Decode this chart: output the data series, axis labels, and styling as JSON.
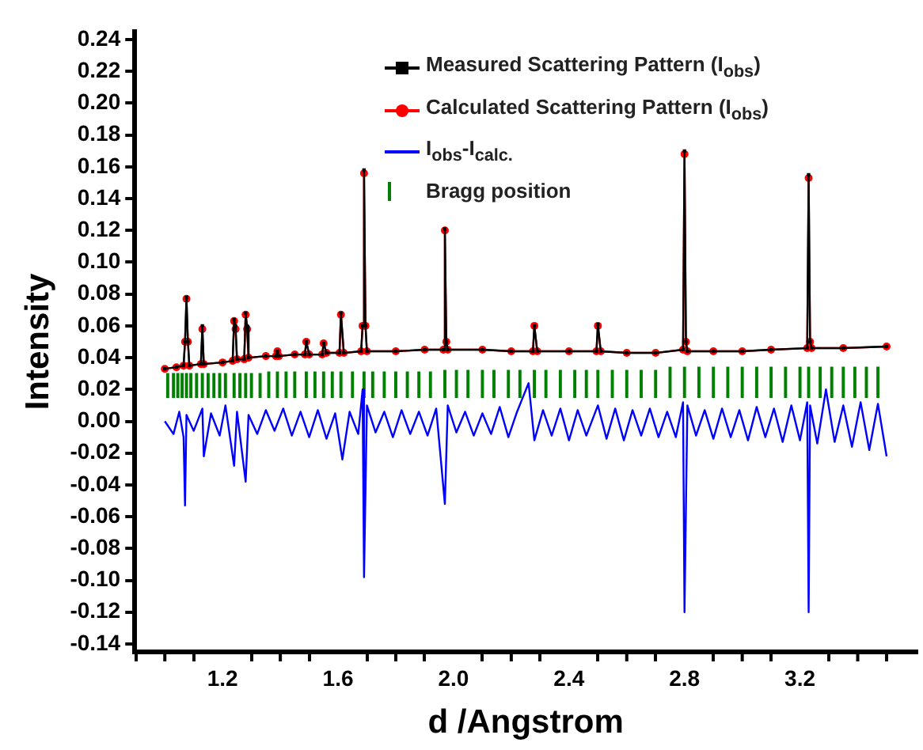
{
  "chart_data": {
    "type": "line",
    "xlabel": "d /Angstrom",
    "ylabel": "Intensity",
    "xlim": [
      1.0,
      3.5
    ],
    "xticks": [
      {
        "value": 1.0,
        "label": null
      },
      {
        "value": 1.2,
        "label": "1.2"
      },
      {
        "value": 1.4,
        "label": null
      },
      {
        "value": 1.6,
        "label": "1.6"
      },
      {
        "value": 1.8,
        "label": null
      },
      {
        "value": 2.0,
        "label": "2.0"
      },
      {
        "value": 2.2,
        "label": null
      },
      {
        "value": 2.4,
        "label": "2.4"
      },
      {
        "value": 2.6,
        "label": null
      },
      {
        "value": 2.8,
        "label": "2.8"
      },
      {
        "value": 3.0,
        "label": null
      },
      {
        "value": 3.2,
        "label": "3.2"
      },
      {
        "value": 3.4,
        "label": null
      }
    ],
    "ylim": [
      -0.145,
      0.245
    ],
    "yticks": [
      {
        "value": -0.14,
        "label": "-0.14"
      },
      {
        "value": -0.12,
        "label": "-0.12"
      },
      {
        "value": -0.1,
        "label": "-0.10"
      },
      {
        "value": -0.08,
        "label": "-0.08"
      },
      {
        "value": -0.06,
        "label": "-0.06"
      },
      {
        "value": -0.04,
        "label": "-0.04"
      },
      {
        "value": -0.02,
        "label": "-0.02"
      },
      {
        "value": 0,
        "label": "0.00"
      },
      {
        "value": 0.02,
        "label": "0.02"
      },
      {
        "value": 0.04,
        "label": "0.04"
      },
      {
        "value": 0.06,
        "label": "0.06"
      },
      {
        "value": 0.08,
        "label": "0.08"
      },
      {
        "value": 0.1,
        "label": "0.10"
      },
      {
        "value": 0.12,
        "label": "0.12"
      },
      {
        "value": 0.14,
        "label": "0.14"
      },
      {
        "value": 0.16,
        "label": "0.16"
      },
      {
        "value": 0.18,
        "label": "0.18"
      },
      {
        "value": 0.2,
        "label": "0.20"
      },
      {
        "value": 0.22,
        "label": "0.22"
      },
      {
        "value": 0.24,
        "label": "0.24"
      }
    ],
    "grid": false,
    "legend": "top",
    "series": [
      {
        "type": "bar",
        "name": "Bragg position",
        "color": "#008000",
        "x": [
          1.01,
          1.03,
          1.045,
          1.06,
          1.075,
          1.09,
          1.11,
          1.13,
          1.15,
          1.17,
          1.19,
          1.21,
          1.24,
          1.26,
          1.28,
          1.3,
          1.33,
          1.36,
          1.39,
          1.42,
          1.45,
          1.49,
          1.52,
          1.55,
          1.58,
          1.61,
          1.65,
          1.69,
          1.72,
          1.76,
          1.8,
          1.84,
          1.88,
          1.92,
          1.97,
          2.01,
          2.05,
          2.1,
          2.14,
          2.19,
          2.23,
          2.28,
          2.32,
          2.37,
          2.42,
          2.46,
          2.5,
          2.55,
          2.6,
          2.65,
          2.7,
          2.75,
          2.8,
          2.85,
          2.9,
          2.95,
          3.0,
          3.05,
          3.1,
          3.15,
          3.2,
          3.23,
          3.27,
          3.31,
          3.35,
          3.39,
          3.43,
          3.47
        ],
        "values": [
          0.015,
          0.015,
          0.015,
          0.015,
          0.015,
          0.015,
          0.015,
          0.015,
          0.015,
          0.015,
          0.015,
          0.015,
          0.015,
          0.015,
          0.015,
          0.015,
          0.015,
          0.016,
          0.016,
          0.016,
          0.016,
          0.016,
          0.016,
          0.016,
          0.016,
          0.016,
          0.016,
          0.016,
          0.016,
          0.016,
          0.016,
          0.016,
          0.016,
          0.016,
          0.017,
          0.017,
          0.017,
          0.017,
          0.017,
          0.017,
          0.017,
          0.017,
          0.017,
          0.017,
          0.017,
          0.017,
          0.017,
          0.017,
          0.017,
          0.017,
          0.017,
          0.019,
          0.019,
          0.019,
          0.019,
          0.019,
          0.019,
          0.019,
          0.019,
          0.019,
          0.019,
          0.019,
          0.019,
          0.019,
          0.019,
          0.019,
          0.019,
          0.019
        ],
        "base": [
          0.015,
          0.015,
          0.015,
          0.015,
          0.015,
          0.015,
          0.015,
          0.015,
          0.015,
          0.015,
          0.015,
          0.015,
          0.015,
          0.015,
          0.015,
          0.015,
          0.015,
          0.015,
          0.015,
          0.015,
          0.015,
          0.015,
          0.015,
          0.015,
          0.015,
          0.015,
          0.015,
          0.015,
          0.015,
          0.015,
          0.015,
          0.015,
          0.015,
          0.015,
          0.015,
          0.015,
          0.015,
          0.015,
          0.015,
          0.015,
          0.015,
          0.015,
          0.015,
          0.015,
          0.015,
          0.015,
          0.015,
          0.015,
          0.015,
          0.015,
          0.015,
          0.015,
          0.015,
          0.015,
          0.015,
          0.015,
          0.015,
          0.015,
          0.015,
          0.015,
          0.015,
          0.015,
          0.015,
          0.015,
          0.015,
          0.015,
          0.015,
          0.015
        ]
      },
      {
        "type": "line",
        "name": "I$_{obs}$-I$_{calc.}$",
        "color": "#0000ff",
        "marker": "none",
        "x": [
          1.0,
          1.03,
          1.05,
          1.065,
          1.07,
          1.075,
          1.1,
          1.13,
          1.135,
          1.16,
          1.19,
          1.21,
          1.24,
          1.25,
          1.28,
          1.29,
          1.32,
          1.35,
          1.38,
          1.41,
          1.44,
          1.47,
          1.5,
          1.53,
          1.56,
          1.59,
          1.615,
          1.64,
          1.67,
          1.685,
          1.69,
          1.7,
          1.73,
          1.76,
          1.79,
          1.82,
          1.85,
          1.88,
          1.91,
          1.94,
          1.97,
          1.98,
          2.01,
          2.04,
          2.07,
          2.1,
          2.13,
          2.16,
          2.19,
          2.22,
          2.26,
          2.28,
          2.31,
          2.34,
          2.37,
          2.4,
          2.43,
          2.46,
          2.5,
          2.53,
          2.56,
          2.59,
          2.62,
          2.65,
          2.68,
          2.71,
          2.74,
          2.77,
          2.795,
          2.8,
          2.81,
          2.84,
          2.87,
          2.9,
          2.93,
          2.96,
          2.99,
          3.02,
          3.05,
          3.08,
          3.11,
          3.14,
          3.17,
          3.2,
          3.225,
          3.23,
          3.235,
          3.26,
          3.29,
          3.32,
          3.35,
          3.38,
          3.41,
          3.44,
          3.47,
          3.5
        ],
        "values": [
          0.0,
          -0.008,
          0.006,
          -0.01,
          -0.053,
          0.004,
          -0.006,
          0.008,
          -0.022,
          0.005,
          -0.009,
          0.01,
          -0.028,
          0.006,
          -0.038,
          0.004,
          -0.008,
          0.007,
          -0.006,
          0.008,
          -0.009,
          0.006,
          -0.01,
          0.007,
          -0.011,
          0.005,
          -0.024,
          0.006,
          -0.008,
          0.02,
          -0.098,
          0.01,
          -0.007,
          0.006,
          -0.01,
          0.007,
          -0.008,
          0.006,
          -0.009,
          0.008,
          -0.052,
          0.01,
          -0.007,
          0.006,
          -0.009,
          0.005,
          -0.008,
          0.009,
          -0.01,
          0.006,
          0.024,
          -0.012,
          0.007,
          -0.009,
          0.008,
          -0.012,
          0.007,
          -0.009,
          0.01,
          -0.011,
          0.008,
          -0.012,
          0.007,
          -0.009,
          0.008,
          -0.01,
          0.006,
          -0.01,
          0.012,
          -0.12,
          0.01,
          -0.009,
          0.007,
          -0.011,
          0.008,
          -0.01,
          0.007,
          -0.012,
          0.009,
          -0.01,
          0.008,
          -0.013,
          0.01,
          -0.012,
          0.012,
          -0.12,
          0.01,
          -0.014,
          0.02,
          -0.013,
          0.01,
          -0.016,
          0.012,
          -0.018,
          0.011,
          -0.022
        ]
      },
      {
        "name": "Calculated Scattering Pattern (I$_{obs}$)",
        "color": "#ff0000",
        "marker": "circle",
        "x": [
          1.0,
          1.04,
          1.065,
          1.07,
          1.075,
          1.08,
          1.085,
          1.125,
          1.13,
          1.135,
          1.2,
          1.235,
          1.24,
          1.245,
          1.25,
          1.275,
          1.28,
          1.285,
          1.29,
          1.35,
          1.385,
          1.39,
          1.395,
          1.45,
          1.485,
          1.49,
          1.5,
          1.545,
          1.55,
          1.56,
          1.605,
          1.61,
          1.62,
          1.68,
          1.685,
          1.69,
          1.695,
          1.7,
          1.8,
          1.9,
          1.965,
          1.97,
          1.975,
          1.98,
          2.1,
          2.2,
          2.275,
          2.28,
          2.29,
          2.4,
          2.495,
          2.5,
          2.51,
          2.6,
          2.7,
          2.795,
          2.8,
          2.805,
          2.81,
          2.9,
          3.0,
          3.1,
          3.225,
          3.23,
          3.235,
          3.24,
          3.35,
          3.5
        ],
        "values": [
          0.033,
          0.034,
          0.035,
          0.05,
          0.077,
          0.05,
          0.035,
          0.036,
          0.058,
          0.036,
          0.037,
          0.038,
          0.063,
          0.058,
          0.039,
          0.039,
          0.067,
          0.058,
          0.04,
          0.041,
          0.041,
          0.044,
          0.041,
          0.042,
          0.042,
          0.05,
          0.042,
          0.042,
          0.049,
          0.043,
          0.043,
          0.067,
          0.043,
          0.044,
          0.06,
          0.156,
          0.06,
          0.044,
          0.044,
          0.045,
          0.045,
          0.12,
          0.05,
          0.045,
          0.045,
          0.044,
          0.044,
          0.06,
          0.044,
          0.044,
          0.044,
          0.06,
          0.044,
          0.043,
          0.043,
          0.045,
          0.168,
          0.05,
          0.044,
          0.044,
          0.044,
          0.045,
          0.046,
          0.153,
          0.05,
          0.046,
          0.046,
          0.047
        ]
      },
      {
        "name": "Measured Scattering Pattern (I$_{obs}$)",
        "color": "#000000",
        "marker": "square",
        "x": [
          1.0,
          1.04,
          1.065,
          1.07,
          1.075,
          1.08,
          1.085,
          1.125,
          1.13,
          1.135,
          1.2,
          1.235,
          1.24,
          1.245,
          1.25,
          1.275,
          1.28,
          1.285,
          1.29,
          1.35,
          1.385,
          1.39,
          1.395,
          1.45,
          1.485,
          1.49,
          1.5,
          1.545,
          1.55,
          1.56,
          1.605,
          1.61,
          1.62,
          1.68,
          1.685,
          1.69,
          1.695,
          1.7,
          1.8,
          1.9,
          1.965,
          1.97,
          1.975,
          1.98,
          2.1,
          2.2,
          2.275,
          2.28,
          2.29,
          2.4,
          2.495,
          2.5,
          2.51,
          2.6,
          2.7,
          2.795,
          2.8,
          2.805,
          2.81,
          2.9,
          3.0,
          3.1,
          3.225,
          3.23,
          3.235,
          3.24,
          3.35,
          3.5
        ],
        "values": [
          0.033,
          0.034,
          0.035,
          0.05,
          0.078,
          0.05,
          0.035,
          0.036,
          0.06,
          0.036,
          0.037,
          0.038,
          0.064,
          0.06,
          0.039,
          0.039,
          0.068,
          0.06,
          0.04,
          0.041,
          0.041,
          0.044,
          0.041,
          0.042,
          0.042,
          0.05,
          0.042,
          0.042,
          0.049,
          0.043,
          0.043,
          0.068,
          0.043,
          0.044,
          0.06,
          0.158,
          0.06,
          0.044,
          0.044,
          0.045,
          0.045,
          0.121,
          0.05,
          0.045,
          0.045,
          0.044,
          0.044,
          0.06,
          0.044,
          0.044,
          0.044,
          0.061,
          0.044,
          0.043,
          0.043,
          0.045,
          0.17,
          0.05,
          0.044,
          0.044,
          0.044,
          0.045,
          0.046,
          0.155,
          0.05,
          0.046,
          0.046,
          0.047
        ]
      }
    ]
  }
}
